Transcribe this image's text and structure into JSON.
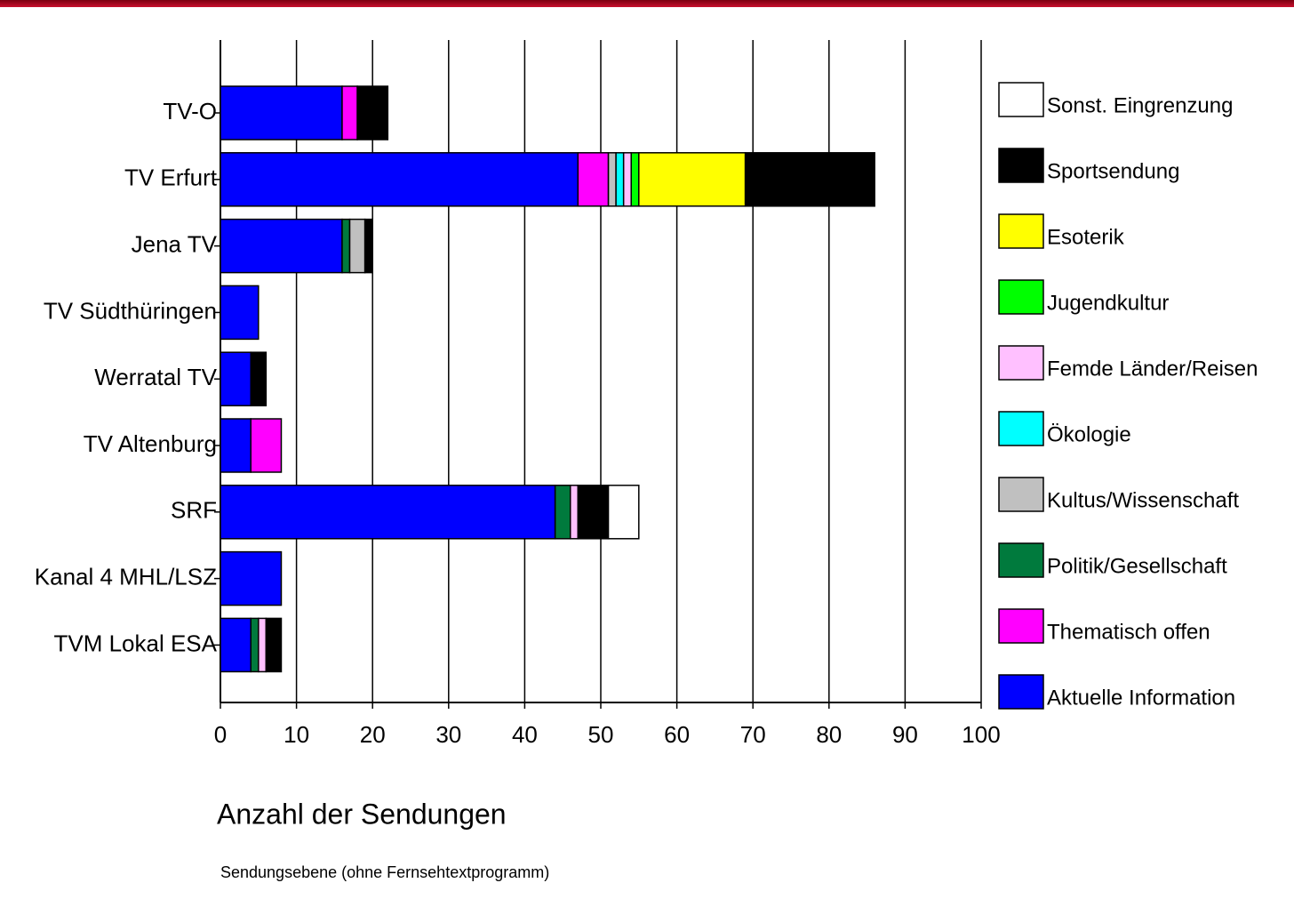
{
  "chart_data": {
    "type": "stacked-barh",
    "title": "Anzahl der Sendungen",
    "subtitle": "Sendungsebene (ohne Fernsehtextprogramm)",
    "categories": [
      "TV-O",
      "TV Erfurt",
      "Jena TV",
      "TV Südthüringen",
      "Werratal TV",
      "TV Altenburg",
      "SRF",
      "Kanal 4 MHL/LSZ",
      "TVM Lokal ESA"
    ],
    "series": [
      {
        "name": "Aktuelle Information",
        "color": "#0000ff",
        "values": [
          16,
          47,
          16,
          5,
          4,
          4,
          44,
          8,
          4
        ]
      },
      {
        "name": "Thematisch offen",
        "color": "#ff00ff",
        "values": [
          2,
          4,
          0,
          0,
          0,
          4,
          0,
          0,
          0
        ]
      },
      {
        "name": "Politik/Gesellschaft",
        "color": "#007a3d",
        "values": [
          0,
          0,
          1,
          0,
          0,
          0,
          2,
          0,
          1
        ]
      },
      {
        "name": "Kultus/Wissenschaft",
        "color": "#c0c0c0",
        "values": [
          0,
          1,
          2,
          0,
          0,
          0,
          0,
          0,
          0
        ]
      },
      {
        "name": "Ökologie",
        "color": "#00ffff",
        "values": [
          0,
          1,
          0,
          0,
          0,
          0,
          0,
          0,
          0
        ]
      },
      {
        "name": "Femde Länder/Reisen",
        "color": "#ffc0ff",
        "values": [
          0,
          1,
          0,
          0,
          0,
          0,
          1,
          0,
          1
        ]
      },
      {
        "name": "Jugendkultur",
        "color": "#00ff00",
        "values": [
          0,
          1,
          0,
          0,
          0,
          0,
          0,
          0,
          0
        ]
      },
      {
        "name": "Esoterik",
        "color": "#ffff00",
        "values": [
          0,
          14,
          0,
          0,
          0,
          0,
          0,
          0,
          0
        ]
      },
      {
        "name": "Sportsendung",
        "color": "#000000",
        "values": [
          4,
          17,
          1,
          0,
          2,
          0,
          4,
          0,
          2
        ]
      },
      {
        "name": "Sonst. Eingrenzung",
        "color": "#ffffff",
        "values": [
          0,
          0,
          0,
          0,
          0,
          0,
          4,
          0,
          0
        ]
      }
    ],
    "xlim": [
      0,
      100
    ],
    "xticks": [
      0,
      10,
      20,
      30,
      40,
      50,
      60,
      70,
      80,
      90,
      100
    ],
    "grid": true
  }
}
